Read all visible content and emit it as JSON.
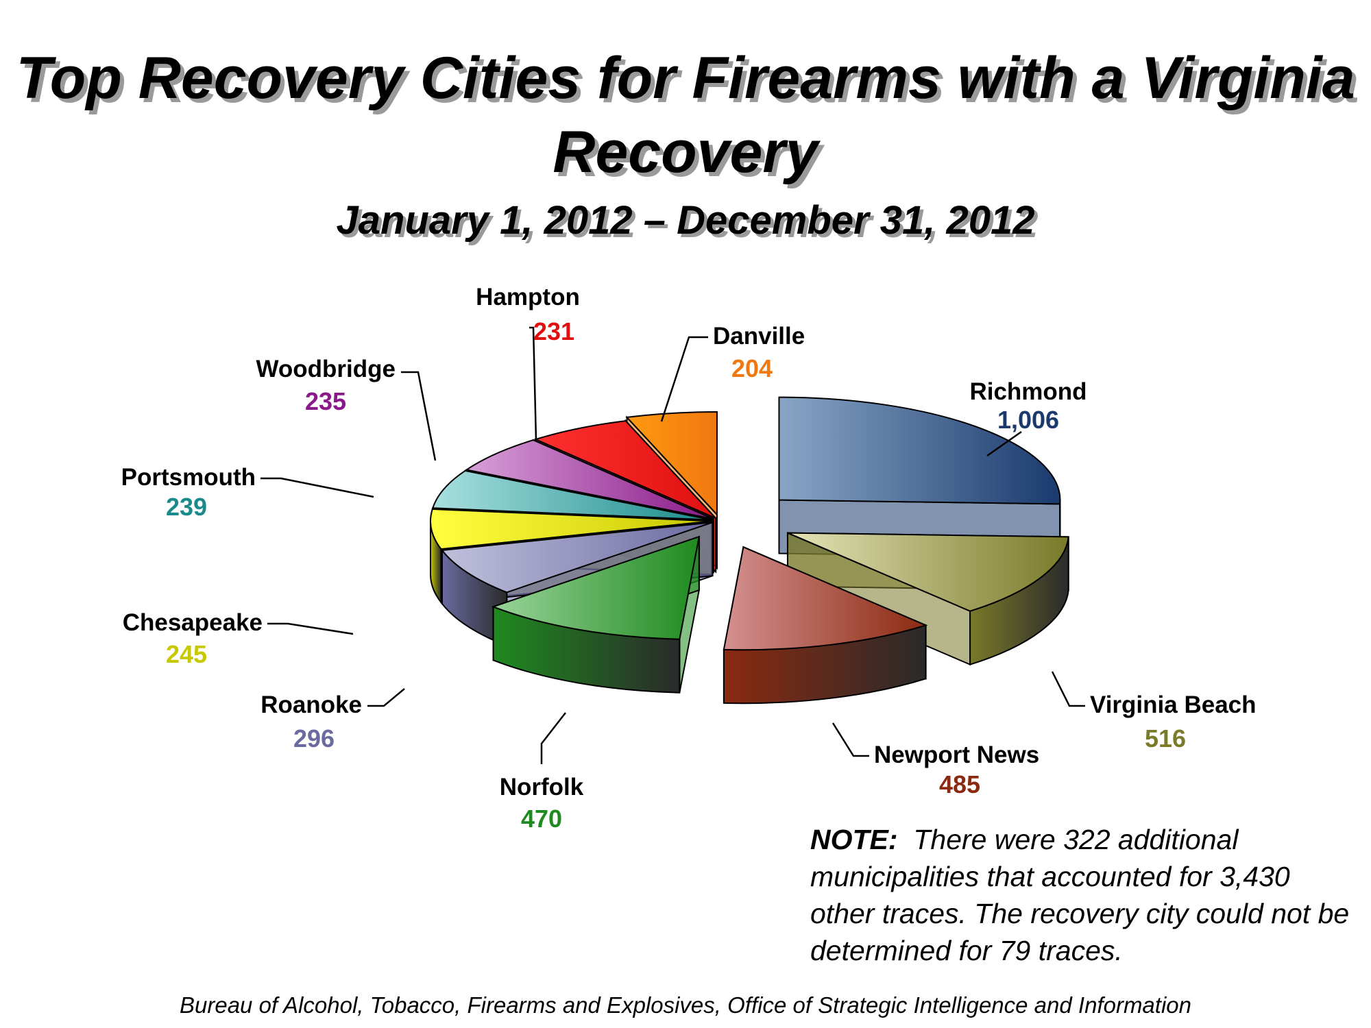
{
  "chart_data": {
    "type": "pie",
    "title": "Top Recovery Cities for Firearms with a Virginia Recovery",
    "subtitle": "January 1, 2012 – December 31, 2012",
    "slices": [
      {
        "label": "Richmond",
        "value": 1006,
        "value_text": "1,006",
        "color": "#1a3a6e",
        "light": "#8aa6c6"
      },
      {
        "label": "Virginia Beach",
        "value": 516,
        "value_text": "516",
        "color": "#7a7a2a",
        "light": "#e4e4b8"
      },
      {
        "label": "Newport News",
        "value": 485,
        "value_text": "485",
        "color": "#8b2a10",
        "light": "#d49090"
      },
      {
        "label": "Norfolk",
        "value": 470,
        "value_text": "470",
        "color": "#1f8a1f",
        "light": "#9ad49a"
      },
      {
        "label": "Roanoke",
        "value": 296,
        "value_text": "296",
        "color": "#6a6aa0",
        "light": "#c0c0dc"
      },
      {
        "label": "Chesapeake",
        "value": 245,
        "value_text": "245",
        "color": "#c8c800",
        "light": "#ffff40"
      },
      {
        "label": "Portsmouth",
        "value": 239,
        "value_text": "239",
        "color": "#1a8a8a",
        "light": "#a8e0e0"
      },
      {
        "label": "Woodbridge",
        "value": 235,
        "value_text": "235",
        "color": "#8a1a8a",
        "light": "#d8a0d8"
      },
      {
        "label": "Hampton",
        "value": 231,
        "value_text": "231",
        "color": "#e01010",
        "light": "#ff3030"
      },
      {
        "label": "Danville",
        "value": 204,
        "value_text": "204",
        "color": "#f07810",
        "light": "#ff9a10"
      }
    ]
  },
  "note": {
    "prefix": "NOTE:",
    "text": "There were 322 additional municipalities that accounted for 3,430 other traces.  The recovery city could not be determined for 79 traces."
  },
  "source": "Bureau of Alcohol, Tobacco, Firearms and Explosives, Office of Strategic Intelligence and Information"
}
